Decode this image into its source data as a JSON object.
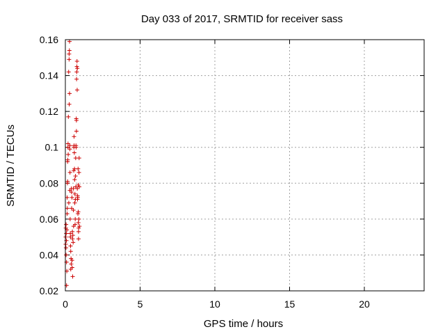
{
  "chart_data": {
    "type": "scatter",
    "title": "Day 033 of 2017, SRMTID for receiver sass",
    "xlabel": "GPS time / hours",
    "ylabel": "SRMTID / TECUs",
    "xlim": [
      0,
      24
    ],
    "ylim": [
      0.02,
      0.16
    ],
    "xticks": [
      0,
      5,
      10,
      15,
      20
    ],
    "xtick_labels": [
      "0",
      "5",
      "10",
      "15",
      "20"
    ],
    "yticks": [
      0.02,
      0.04,
      0.06,
      0.08,
      0.1,
      0.12,
      0.14,
      0.16
    ],
    "ytick_labels": [
      "0.02",
      "0.04",
      "0.06",
      "0.08",
      "0.1",
      "0.12",
      "0.14",
      "0.16"
    ],
    "grid": true,
    "marker": "plus",
    "color": "#cc0000",
    "series": [
      {
        "name": "SRMTID",
        "points": [
          [
            0.02,
            0.046
          ],
          [
            0.02,
            0.05
          ],
          [
            0.03,
            0.055
          ],
          [
            0.04,
            0.044
          ],
          [
            0.05,
            0.04
          ],
          [
            0.05,
            0.057
          ],
          [
            0.06,
            0.052
          ],
          [
            0.07,
            0.048
          ],
          [
            0.08,
            0.036
          ],
          [
            0.08,
            0.023
          ],
          [
            0.1,
            0.031
          ],
          [
            0.1,
            0.054
          ],
          [
            0.12,
            0.063
          ],
          [
            0.12,
            0.072
          ],
          [
            0.13,
            0.066
          ],
          [
            0.14,
            0.08
          ],
          [
            0.15,
            0.081
          ],
          [
            0.15,
            0.092
          ],
          [
            0.16,
            0.093
          ],
          [
            0.17,
            0.1
          ],
          [
            0.18,
            0.102
          ],
          [
            0.19,
            0.096
          ],
          [
            0.2,
            0.117
          ],
          [
            0.22,
            0.142
          ],
          [
            0.23,
            0.069
          ],
          [
            0.25,
            0.152
          ],
          [
            0.25,
            0.149
          ],
          [
            0.26,
            0.124
          ],
          [
            0.27,
            0.154
          ],
          [
            0.28,
            0.159
          ],
          [
            0.28,
            0.13
          ],
          [
            0.3,
            0.101
          ],
          [
            0.3,
            0.099
          ],
          [
            0.3,
            0.076
          ],
          [
            0.31,
            0.086
          ],
          [
            0.32,
            0.06
          ],
          [
            0.33,
            0.052
          ],
          [
            0.34,
            0.05
          ],
          [
            0.35,
            0.045
          ],
          [
            0.36,
            0.042
          ],
          [
            0.36,
            0.032
          ],
          [
            0.38,
            0.038
          ],
          [
            0.39,
            0.035
          ],
          [
            0.4,
            0.077
          ],
          [
            0.41,
            0.075
          ],
          [
            0.42,
            0.066
          ],
          [
            0.44,
            0.072
          ],
          [
            0.45,
            0.037
          ],
          [
            0.46,
            0.033
          ],
          [
            0.47,
            0.053
          ],
          [
            0.48,
            0.049
          ],
          [
            0.49,
            0.028
          ],
          [
            0.5,
            0.051
          ],
          [
            0.52,
            0.047
          ],
          [
            0.53,
            0.077
          ],
          [
            0.54,
            0.065
          ],
          [
            0.55,
            0.056
          ],
          [
            0.56,
            0.087
          ],
          [
            0.57,
            0.1
          ],
          [
            0.58,
            0.101
          ],
          [
            0.58,
            0.106
          ],
          [
            0.6,
            0.097
          ],
          [
            0.61,
            0.088
          ],
          [
            0.62,
            0.082
          ],
          [
            0.63,
            0.069
          ],
          [
            0.64,
            0.074
          ],
          [
            0.65,
            0.057
          ],
          [
            0.66,
            0.06
          ],
          [
            0.67,
            0.071
          ],
          [
            0.68,
            0.084
          ],
          [
            0.69,
            0.094
          ],
          [
            0.7,
            0.078
          ],
          [
            0.71,
            0.101
          ],
          [
            0.72,
            0.1
          ],
          [
            0.73,
            0.116
          ],
          [
            0.74,
            0.115
          ],
          [
            0.74,
            0.109
          ],
          [
            0.75,
            0.138
          ],
          [
            0.76,
            0.142
          ],
          [
            0.77,
            0.145
          ],
          [
            0.78,
            0.148
          ],
          [
            0.79,
            0.132
          ],
          [
            0.8,
            0.144
          ],
          [
            0.8,
            0.077
          ],
          [
            0.81,
            0.071
          ],
          [
            0.82,
            0.073
          ],
          [
            0.83,
            0.072
          ],
          [
            0.84,
            0.063
          ],
          [
            0.85,
            0.088
          ],
          [
            0.86,
            0.079
          ],
          [
            0.86,
            0.064
          ],
          [
            0.87,
            0.058
          ],
          [
            0.88,
            0.053
          ],
          [
            0.88,
            0.049
          ],
          [
            0.89,
            0.055
          ],
          [
            0.9,
            0.06
          ],
          [
            0.91,
            0.086
          ],
          [
            0.92,
            0.094
          ],
          [
            0.93,
            0.078
          ],
          [
            0.94,
            0.056
          ]
        ]
      }
    ]
  }
}
